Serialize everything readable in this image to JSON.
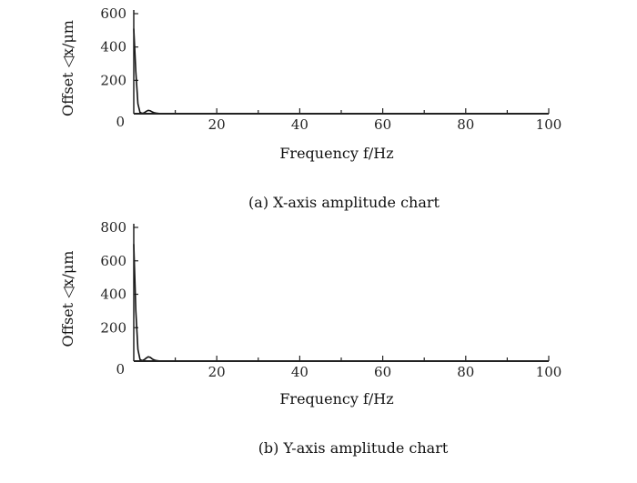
{
  "chart_data": [
    {
      "type": "line",
      "caption": "(a) X-axis amplitude chart",
      "xlabel": "Frequency f/Hz",
      "ylabel": "Offset ◁x/μm",
      "xlim": [
        0,
        100
      ],
      "ylim": [
        0,
        600
      ],
      "xticks": [
        0,
        20,
        40,
        60,
        80,
        100
      ],
      "yticks": [
        200,
        400,
        600
      ],
      "grid": false,
      "series": [
        {
          "x": [
            0,
            0.5,
            1,
            1.5,
            2,
            2.5,
            3,
            3.5,
            4,
            4.5,
            5,
            5.5,
            6,
            7,
            8,
            10,
            15,
            20,
            30,
            40,
            50,
            60,
            70,
            80,
            90,
            100
          ],
          "y": [
            510,
            250,
            60,
            8,
            2,
            5,
            14,
            20,
            17,
            10,
            5,
            3,
            2,
            1,
            1,
            1,
            1,
            1,
            1,
            1,
            1,
            1,
            1,
            1,
            1,
            1
          ]
        }
      ]
    },
    {
      "type": "line",
      "caption": "(b) Y-axis amplitude chart",
      "xlabel": "Frequency f/Hz",
      "ylabel": "Offset ◁x/μm",
      "xlim": [
        0,
        100
      ],
      "ylim": [
        0,
        800
      ],
      "xticks": [
        0,
        20,
        40,
        60,
        80,
        100
      ],
      "yticks": [
        200,
        400,
        600,
        800
      ],
      "grid": false,
      "series": [
        {
          "x": [
            0,
            0.5,
            1,
            1.5,
            2,
            2.5,
            3,
            3.5,
            4,
            4.5,
            5,
            5.5,
            6,
            7,
            8,
            10,
            15,
            20,
            30,
            40,
            50,
            60,
            70,
            80,
            90,
            100
          ],
          "y": [
            700,
            300,
            70,
            10,
            3,
            8,
            18,
            26,
            22,
            12,
            6,
            3,
            2,
            1,
            1,
            1,
            1,
            1,
            1,
            1,
            1,
            1,
            1,
            1,
            1,
            1
          ]
        }
      ]
    }
  ]
}
